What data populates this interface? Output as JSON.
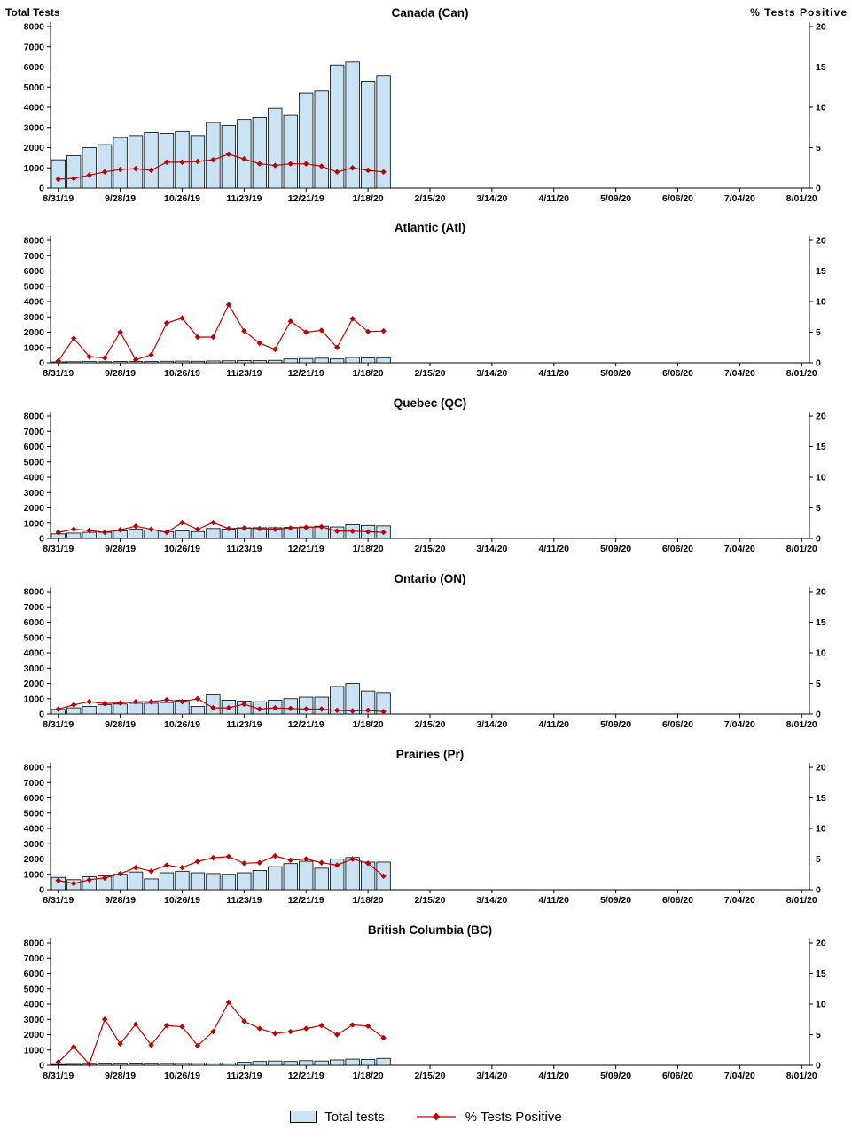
{
  "axes": {
    "left_title": "Total Tests",
    "right_title": "% Tests Positive",
    "left_ticks": [
      0,
      1000,
      2000,
      3000,
      4000,
      5000,
      6000,
      7000,
      8000
    ],
    "right_ticks": [
      0,
      5,
      10,
      15,
      20
    ]
  },
  "x_axis": {
    "weeks": 49,
    "label_every": 4,
    "tick_labels": [
      "8/31/19",
      "9/28/19",
      "10/26/19",
      "11/23/19",
      "12/21/19",
      "1/18/20",
      "2/15/20",
      "3/14/20",
      "4/11/20",
      "5/09/20",
      "6/06/20",
      "7/04/20",
      "8/01/20"
    ]
  },
  "legend": {
    "bar_label": "Total tests",
    "line_label": "% Tests Positive"
  },
  "colors": {
    "bar_fill": "#c9e3f5",
    "bar_stroke": "#000000",
    "line": "#c00000",
    "axis": "#000000"
  },
  "chart_data": [
    {
      "type": "combo-bar-line",
      "title": "Canada (Can)",
      "left_ylim": [
        0,
        8000
      ],
      "right_ylim": [
        0,
        20
      ],
      "x": [
        "8/31/19",
        "9/07/19",
        "9/14/19",
        "9/21/19",
        "9/28/19",
        "10/05/19",
        "10/12/19",
        "10/19/19",
        "10/26/19",
        "11/02/19",
        "11/09/19",
        "11/16/19",
        "11/23/19",
        "11/30/19",
        "12/07/19",
        "12/14/19",
        "12/21/19",
        "12/28/19",
        "1/04/20",
        "1/11/20",
        "1/18/20",
        "1/25/20"
      ],
      "series": [
        {
          "name": "Total tests",
          "type": "bar",
          "axis": "left",
          "values": [
            1400,
            1600,
            2000,
            2150,
            2500,
            2600,
            2750,
            2700,
            2800,
            2600,
            3250,
            3100,
            3400,
            3500,
            3950,
            3600,
            4700,
            4800,
            6100,
            6250,
            5300,
            5550
          ]
        },
        {
          "name": "% Tests Positive",
          "type": "line",
          "axis": "right",
          "values": [
            1.1,
            1.2,
            1.6,
            2.0,
            2.3,
            2.4,
            2.2,
            3.2,
            3.2,
            3.3,
            3.5,
            4.2,
            3.6,
            3.0,
            2.8,
            3.0,
            3.0,
            2.7,
            2.0,
            2.5,
            2.2,
            2.0
          ]
        }
      ]
    },
    {
      "type": "combo-bar-line",
      "title": "Atlantic (Atl)",
      "left_ylim": [
        0,
        8000
      ],
      "right_ylim": [
        0,
        20
      ],
      "x": [
        "8/31/19",
        "9/07/19",
        "9/14/19",
        "9/21/19",
        "9/28/19",
        "10/05/19",
        "10/12/19",
        "10/19/19",
        "10/26/19",
        "11/02/19",
        "11/09/19",
        "11/16/19",
        "11/23/19",
        "11/30/19",
        "12/07/19",
        "12/14/19",
        "12/21/19",
        "12/28/19",
        "1/04/20",
        "1/11/20",
        "1/18/20",
        "1/25/20"
      ],
      "series": [
        {
          "name": "Total tests",
          "type": "bar",
          "axis": "left",
          "values": [
            60,
            70,
            80,
            70,
            90,
            80,
            90,
            100,
            110,
            100,
            120,
            130,
            150,
            140,
            160,
            250,
            280,
            300,
            250,
            350,
            320,
            330
          ]
        },
        {
          "name": "% Tests Positive",
          "type": "line",
          "axis": "right",
          "values": [
            0.3,
            4.0,
            1.0,
            0.8,
            5.0,
            0.5,
            1.3,
            6.5,
            7.3,
            4.2,
            4.2,
            9.5,
            5.2,
            3.2,
            2.2,
            6.8,
            5.0,
            5.3,
            2.5,
            7.2,
            5.1,
            5.2
          ]
        }
      ]
    },
    {
      "type": "combo-bar-line",
      "title": "Quebec (QC)",
      "left_ylim": [
        0,
        8000
      ],
      "right_ylim": [
        0,
        20
      ],
      "x": [
        "8/31/19",
        "9/07/19",
        "9/14/19",
        "9/21/19",
        "9/28/19",
        "10/05/19",
        "10/12/19",
        "10/19/19",
        "10/26/19",
        "11/02/19",
        "11/09/19",
        "11/16/19",
        "11/23/19",
        "11/30/19",
        "12/07/19",
        "12/14/19",
        "12/21/19",
        "12/28/19",
        "1/04/20",
        "1/11/20",
        "1/18/20",
        "1/25/20"
      ],
      "series": [
        {
          "name": "Total tests",
          "type": "bar",
          "axis": "left",
          "values": [
            300,
            350,
            400,
            400,
            500,
            600,
            550,
            450,
            500,
            450,
            650,
            600,
            700,
            700,
            700,
            720,
            750,
            800,
            750,
            900,
            850,
            820
          ]
        },
        {
          "name": "% Tests Positive",
          "type": "line",
          "axis": "right",
          "values": [
            1.0,
            1.5,
            1.3,
            1.0,
            1.4,
            2.0,
            1.5,
            1.0,
            2.6,
            1.5,
            2.6,
            1.6,
            1.7,
            1.6,
            1.5,
            1.7,
            1.8,
            1.9,
            1.2,
            1.2,
            1.1,
            1.0
          ]
        }
      ]
    },
    {
      "type": "combo-bar-line",
      "title": "Ontario (ON)",
      "left_ylim": [
        0,
        8000
      ],
      "right_ylim": [
        0,
        20
      ],
      "x": [
        "8/31/19",
        "9/07/19",
        "9/14/19",
        "9/21/19",
        "9/28/19",
        "10/05/19",
        "10/12/19",
        "10/19/19",
        "10/26/19",
        "11/02/19",
        "11/09/19",
        "11/16/19",
        "11/23/19",
        "11/30/19",
        "12/07/19",
        "12/14/19",
        "12/21/19",
        "12/28/19",
        "1/04/20",
        "1/11/20",
        "1/18/20",
        "1/25/20"
      ],
      "series": [
        {
          "name": "Total tests",
          "type": "bar",
          "axis": "left",
          "values": [
            300,
            400,
            500,
            600,
            650,
            700,
            700,
            750,
            900,
            500,
            1300,
            900,
            850,
            800,
            900,
            1000,
            1100,
            1100,
            1800,
            2000,
            1500,
            1400
          ]
        },
        {
          "name": "% Tests Positive",
          "type": "line",
          "axis": "right",
          "values": [
            0.8,
            1.5,
            2.0,
            1.7,
            1.8,
            2.0,
            2.0,
            2.3,
            2.0,
            2.5,
            1.0,
            1.0,
            1.6,
            0.8,
            1.0,
            0.9,
            0.8,
            0.8,
            0.6,
            0.5,
            0.6,
            0.4
          ]
        }
      ]
    },
    {
      "type": "combo-bar-line",
      "title": "Prairies (Pr)",
      "left_ylim": [
        0,
        8000
      ],
      "right_ylim": [
        0,
        20
      ],
      "x": [
        "8/31/19",
        "9/07/19",
        "9/14/19",
        "9/21/19",
        "9/28/19",
        "10/05/19",
        "10/12/19",
        "10/19/19",
        "10/26/19",
        "11/02/19",
        "11/09/19",
        "11/16/19",
        "11/23/19",
        "11/30/19",
        "12/07/19",
        "12/14/19",
        "12/21/19",
        "12/28/19",
        "1/04/20",
        "1/11/20",
        "1/18/20",
        "1/25/20"
      ],
      "series": [
        {
          "name": "Total tests",
          "type": "bar",
          "axis": "left",
          "values": [
            800,
            650,
            850,
            900,
            1000,
            1150,
            700,
            1100,
            1200,
            1100,
            1050,
            1000,
            1100,
            1250,
            1500,
            1700,
            1850,
            1400,
            2000,
            2100,
            1800,
            1800
          ]
        },
        {
          "name": "% Tests Positive",
          "type": "line",
          "axis": "right",
          "values": [
            1.5,
            1.0,
            1.6,
            1.9,
            2.6,
            3.6,
            3.0,
            4.0,
            3.6,
            4.6,
            5.2,
            5.4,
            4.3,
            4.4,
            5.5,
            4.8,
            5.0,
            4.4,
            4.0,
            5.0,
            4.3,
            2.2
          ]
        }
      ]
    },
    {
      "type": "combo-bar-line",
      "title": "British Columbia (BC)",
      "left_ylim": [
        0,
        8000
      ],
      "right_ylim": [
        0,
        20
      ],
      "x": [
        "8/31/19",
        "9/07/19",
        "9/14/19",
        "9/21/19",
        "9/28/19",
        "10/05/19",
        "10/12/19",
        "10/19/19",
        "10/26/19",
        "11/02/19",
        "11/09/19",
        "11/16/19",
        "11/23/19",
        "11/30/19",
        "12/07/19",
        "12/14/19",
        "12/21/19",
        "12/28/19",
        "1/04/20",
        "1/11/20",
        "1/18/20",
        "1/25/20"
      ],
      "series": [
        {
          "name": "Total tests",
          "type": "bar",
          "axis": "left",
          "values": [
            50,
            60,
            70,
            80,
            100,
            90,
            100,
            110,
            120,
            130,
            140,
            150,
            200,
            250,
            280,
            250,
            300,
            280,
            350,
            400,
            380,
            450
          ]
        },
        {
          "name": "% Tests Positive",
          "type": "line",
          "axis": "right",
          "values": [
            0.5,
            3.0,
            0.2,
            7.5,
            3.5,
            6.7,
            3.3,
            6.5,
            6.3,
            3.2,
            5.5,
            10.3,
            7.2,
            6.0,
            5.2,
            5.5,
            6.0,
            6.5,
            5.0,
            6.6,
            6.4,
            4.5
          ]
        }
      ]
    }
  ]
}
